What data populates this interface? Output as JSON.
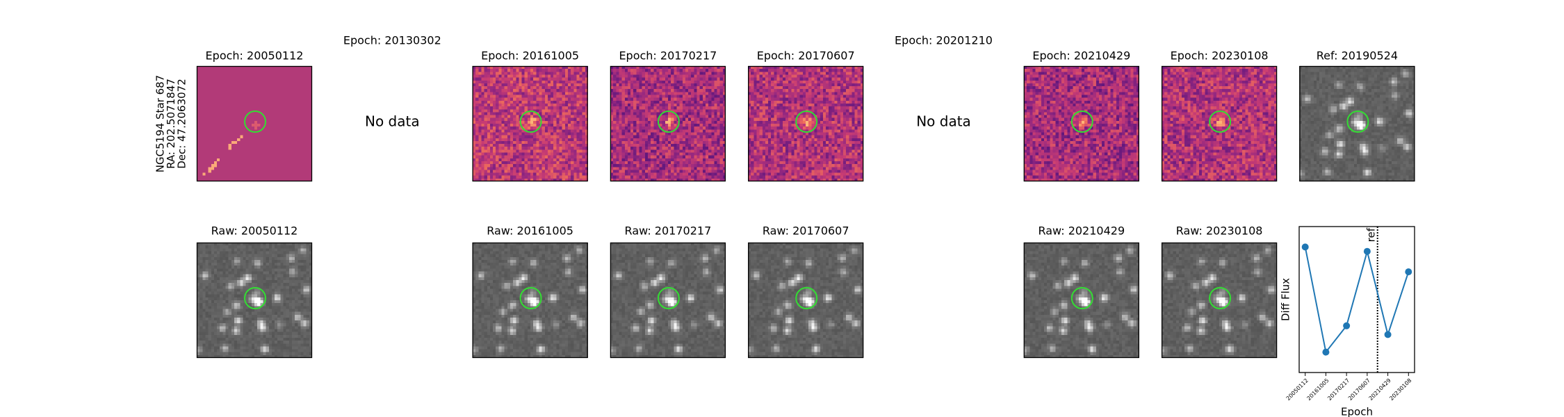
{
  "identity": [
    "NGC5194 Star 687",
    "RA: 202.5071847",
    "Dec: 47.2063072"
  ],
  "top_row": [
    {
      "title": "Epoch: 20050112"
    },
    {
      "title": "Epoch: 20130302",
      "note": "No data"
    },
    {
      "title": "Epoch: 20161005"
    },
    {
      "title": "Epoch: 20170217"
    },
    {
      "title": "Epoch: 20170607"
    },
    {
      "title": "Epoch: 20201210",
      "note": "No data"
    },
    {
      "title": "Epoch: 20210429"
    },
    {
      "title": "Epoch: 20230108"
    },
    {
      "title": "Ref: 20190524"
    }
  ],
  "bottom_row": [
    {
      "title": "Raw: 20050112"
    },
    null,
    {
      "title": "Raw: 20161005"
    },
    {
      "title": "Raw: 20170217"
    },
    {
      "title": "Raw: 20170607"
    },
    null,
    {
      "title": "Raw: 20210429"
    },
    {
      "title": "Raw: 20230108"
    }
  ],
  "chart_data": {
    "type": "line",
    "categories": [
      "20050112",
      "20161005",
      "20170217",
      "20170607",
      "20210429",
      "20230108"
    ],
    "values": [
      0.86,
      0.14,
      0.32,
      0.83,
      0.26,
      0.69
    ],
    "color": "#1f77b4",
    "ylim": [
      0,
      1
    ],
    "ylabel": "Diff Flux",
    "xlabel": "Epoch",
    "ref": {
      "label": "ref",
      "epoch": "20190524"
    }
  }
}
